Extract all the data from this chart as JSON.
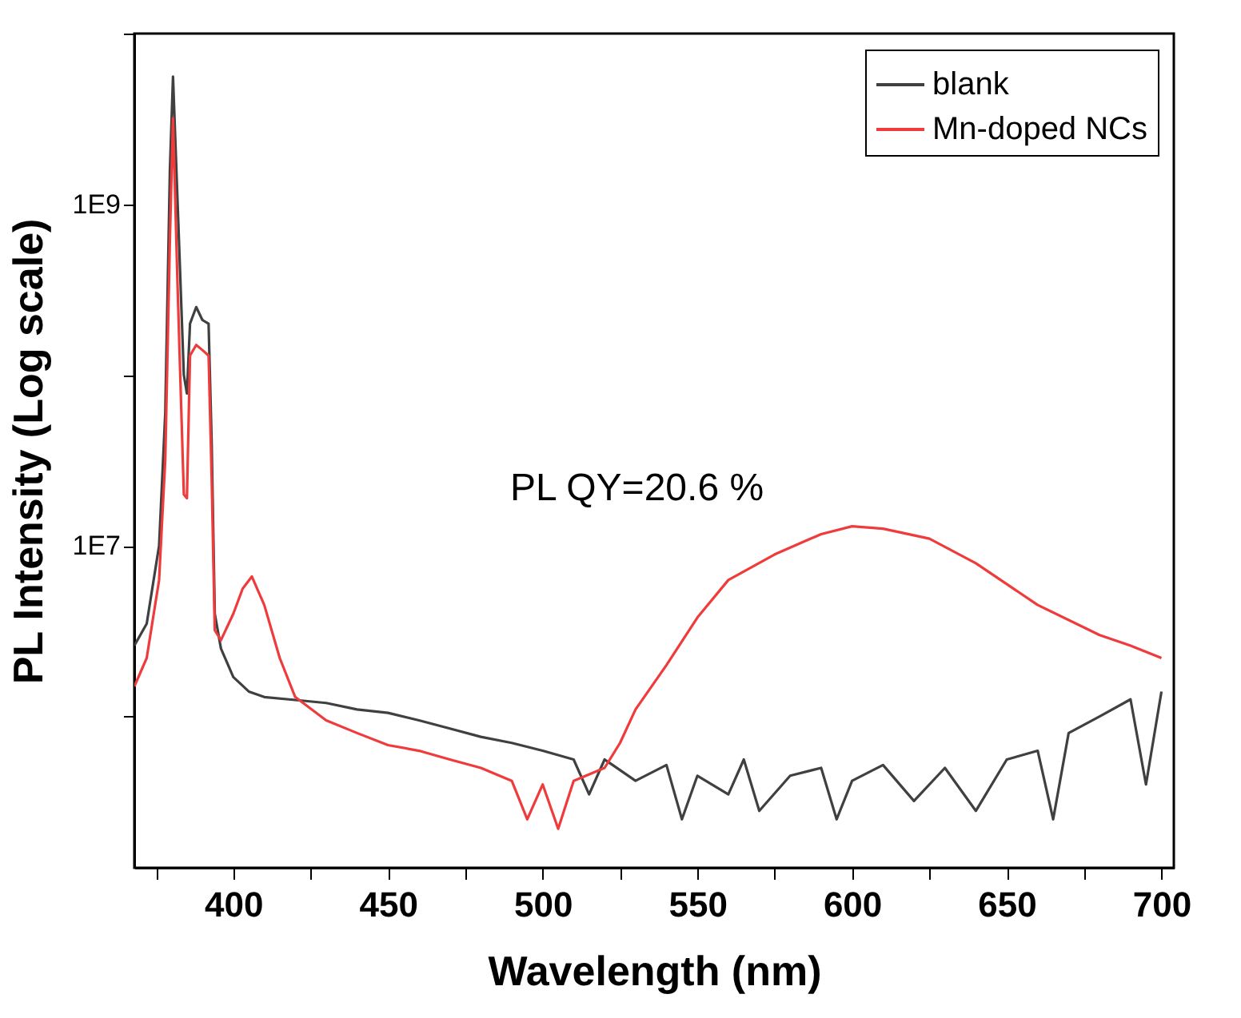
{
  "chart_data": {
    "type": "line",
    "xlabel": "Wavelength (nm)",
    "ylabel": "PL Intensity (Log scale)",
    "annotations": [
      "PL QY=20.6 %"
    ],
    "log": "y",
    "grid": false,
    "legend": "top right",
    "marker": "none",
    "line_style": "solid",
    "xlim": [
      368,
      704
    ],
    "ylim": [
      130000,
      10000000000
    ],
    "xticks": [
      {
        "value": 375,
        "label": null
      },
      400,
      {
        "value": 425,
        "label": null
      },
      450,
      {
        "value": 475,
        "label": null
      },
      500,
      {
        "value": 525,
        "label": null
      },
      550,
      {
        "value": 575,
        "label": null
      },
      600,
      {
        "value": 625,
        "label": null
      },
      650,
      {
        "value": 675,
        "label": null
      },
      700
    ],
    "yticks": [
      {
        "value": 1000000,
        "label": null
      },
      {
        "value": 10000000,
        "label": "1E7"
      },
      {
        "value": 100000000,
        "label": null
      },
      {
        "value": 1000000000,
        "label": "1E9"
      },
      {
        "value": 10000000000,
        "label": null
      }
    ],
    "series": [
      {
        "name": "blank",
        "color": "#404040",
        "x": [
          368,
          372,
          376,
          378,
          379.5,
          380.5,
          382,
          384,
          385,
          386,
          388,
          390,
          392,
          393,
          394,
          396,
          400,
          405,
          410,
          420,
          430,
          440,
          450,
          460,
          470,
          480,
          490,
          500,
          510,
          515,
          520,
          530,
          540,
          545,
          550,
          560,
          565,
          570,
          580,
          590,
          595,
          600,
          610,
          620,
          630,
          640,
          650,
          660,
          665,
          670,
          680,
          690,
          695,
          700
        ],
        "values": [
          2600000,
          3500000,
          10000000,
          60000000,
          1600000000,
          5600000000,
          1000000000,
          100000000,
          78000000,
          200000000,
          250000000,
          210000000,
          200000000,
          40000000,
          4000000,
          2500000,
          1700000,
          1400000,
          1300000,
          1250000,
          1200000,
          1100000,
          1050000,
          950000,
          850000,
          760000,
          700000,
          630000,
          560000,
          350000,
          560000,
          420000,
          520000,
          250000,
          450000,
          350000,
          560000,
          280000,
          450000,
          500000,
          250000,
          420000,
          520000,
          320000,
          500000,
          280000,
          560000,
          630000,
          250000,
          800000,
          1000000,
          1260000,
          400000,
          1400000
        ]
      },
      {
        "name": "Mn-doped NCs",
        "color": "#ef3b3b",
        "x": [
          368,
          372,
          376,
          378,
          379.5,
          380.5,
          382,
          384,
          385,
          386,
          388,
          390,
          392,
          393,
          394,
          396,
          400,
          403,
          406,
          410,
          415,
          420,
          430,
          440,
          450,
          460,
          470,
          480,
          490,
          495,
          500,
          505,
          510,
          520,
          525,
          530,
          540,
          550,
          560,
          575,
          590,
          600,
          610,
          625,
          640,
          660,
          680,
          690,
          700
        ],
        "values": [
          1500000,
          2200000,
          6300000,
          32000000,
          630000000,
          3200000000,
          320000000,
          20000000,
          19000000,
          130000000,
          150000000,
          140000000,
          130000000,
          25000000,
          3200000,
          2800000,
          4000000,
          5600000,
          6600000,
          4500000,
          2200000,
          1300000,
          950000,
          800000,
          680000,
          630000,
          560000,
          500000,
          420000,
          250000,
          400000,
          220000,
          420000,
          500000,
          700000,
          1100000,
          2000000,
          3800000,
          6300000,
          8900000,
          11700000,
          13000000,
          12600000,
          11000000,
          7900000,
          4500000,
          3000000,
          2600000,
          2200000
        ]
      }
    ]
  }
}
